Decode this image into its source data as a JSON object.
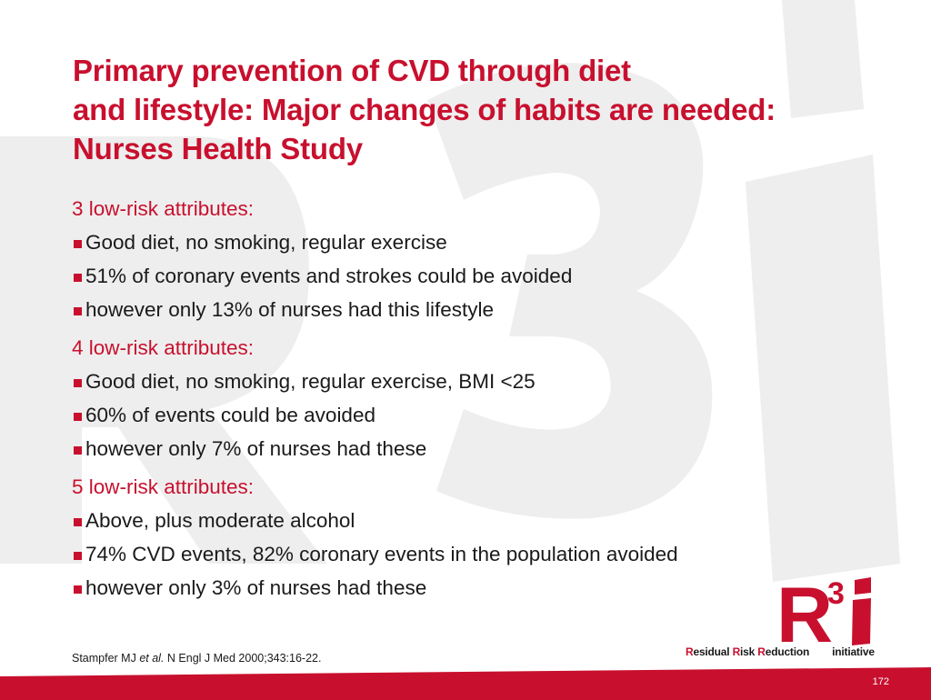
{
  "title": {
    "line1": "Primary prevention of CVD through diet",
    "line2": "and lifestyle: Major changes of habits are needed:",
    "line3": "Nurses Health Study"
  },
  "sections": [
    {
      "heading": "3 low-risk attributes:",
      "bullets": [
        "Good diet, no smoking, regular exercise",
        "51% of coronary events and strokes could be avoided",
        "however only 13% of nurses had this lifestyle"
      ]
    },
    {
      "heading": "4 low-risk attributes:",
      "bullets": [
        "Good diet, no smoking, regular exercise, BMI <25",
        "60% of events could be avoided",
        "however only 7% of nurses had these"
      ]
    },
    {
      "heading": "5 low-risk attributes:",
      "bullets": [
        "Above, plus moderate alcohol",
        "74% CVD events, 82% coronary events in the population avoided",
        "however only 3% of nurses had these"
      ]
    }
  ],
  "citation": {
    "author": "Stampfer MJ ",
    "etal": "et al.",
    "rest": " N Engl J Med 2000;343:16-22."
  },
  "logo": {
    "letter": "R",
    "superscript": "3",
    "letter2": "i",
    "tag_r1": "R",
    "tag_w1": "esidual ",
    "tag_r2": "R",
    "tag_w2": "isk ",
    "tag_r3": "R",
    "tag_w3": "eduction",
    "tag_suffix": "initiative"
  },
  "page_number": "172",
  "colors": {
    "accent": "#c8102e",
    "text": "#1a1a1a",
    "watermark": "#eeeeee",
    "background": "#ffffff"
  }
}
